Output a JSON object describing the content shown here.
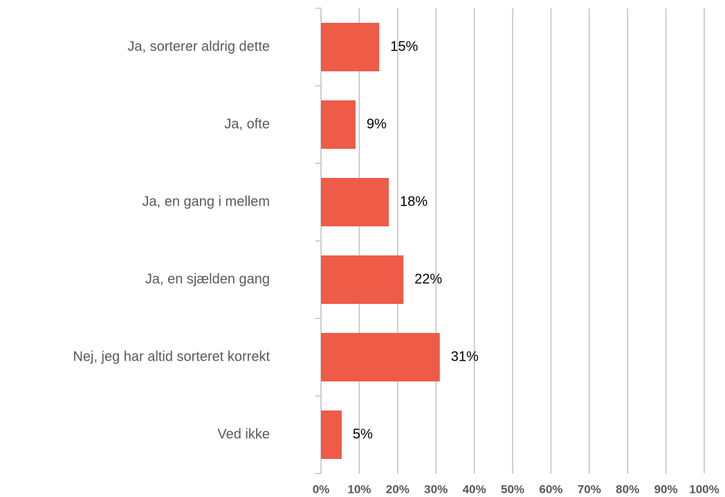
{
  "chart_data": {
    "type": "barh",
    "categories": [
      "Ja, sorterer aldrig dette",
      "Ja, ofte",
      "Ja, en gang i mellem",
      "Ja, en sjælden gang",
      "Nej, jeg har altid sorteret korrekt",
      "Ved ikke"
    ],
    "values": [
      15.2,
      9,
      17.7,
      21.5,
      31,
      5.4
    ],
    "value_labels": [
      "15%",
      "9%",
      "18%",
      "22%",
      "31%",
      "5%"
    ],
    "color": "#ee5b47",
    "xlim": [
      0,
      100
    ],
    "xticks": [
      {
        "value": 0,
        "label": "0%"
      },
      {
        "value": 10,
        "label": "10%"
      },
      {
        "value": 20,
        "label": "20%"
      },
      {
        "value": 30,
        "label": "30%"
      },
      {
        "value": 40,
        "label": "40%"
      },
      {
        "value": 50,
        "label": "50%"
      },
      {
        "value": 60,
        "label": "60%"
      },
      {
        "value": 70,
        "label": "70%"
      },
      {
        "value": 80,
        "label": "80%"
      },
      {
        "value": 90,
        "label": "90%"
      },
      {
        "value": 100,
        "label": "100%"
      }
    ],
    "grid": true
  }
}
